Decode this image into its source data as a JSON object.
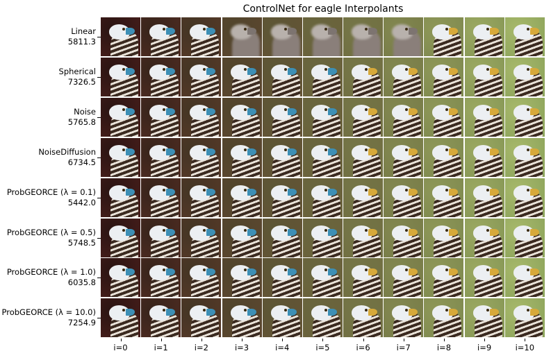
{
  "figure": {
    "title": "ControlNet for eagle Interpolants",
    "rows": [
      {
        "method": "Linear",
        "score": "5811.3"
      },
      {
        "method": "Spherical",
        "score": "7326.5"
      },
      {
        "method": "Noise",
        "score": "5765.8"
      },
      {
        "method": "NoiseDiffusion",
        "score": "6734.5"
      },
      {
        "method": "ProbGEORCE (λ = 0.1)",
        "score": "5442.0"
      },
      {
        "method": "ProbGEORCE (λ = 0.5)",
        "score": "5748.5"
      },
      {
        "method": "ProbGEORCE (λ = 1.0)",
        "score": "6035.8"
      },
      {
        "method": "ProbGEORCE (λ = 10.0)",
        "score": "7254.9"
      }
    ],
    "columns": [
      "i=0",
      "i=1",
      "i=2",
      "i=3",
      "i=4",
      "i=5",
      "i=6",
      "i=7",
      "i=8",
      "i=9",
      "i=10"
    ]
  },
  "colors": {
    "start_background": "#4a1f1c",
    "end_background": "#8aa25a",
    "head_white": "#eceff2",
    "body_dark": "#3b2a20",
    "beak_blue": "#3d8fb5",
    "beak_yellow": "#d7a93a",
    "blurred_gray": "#8a7f7a"
  }
}
